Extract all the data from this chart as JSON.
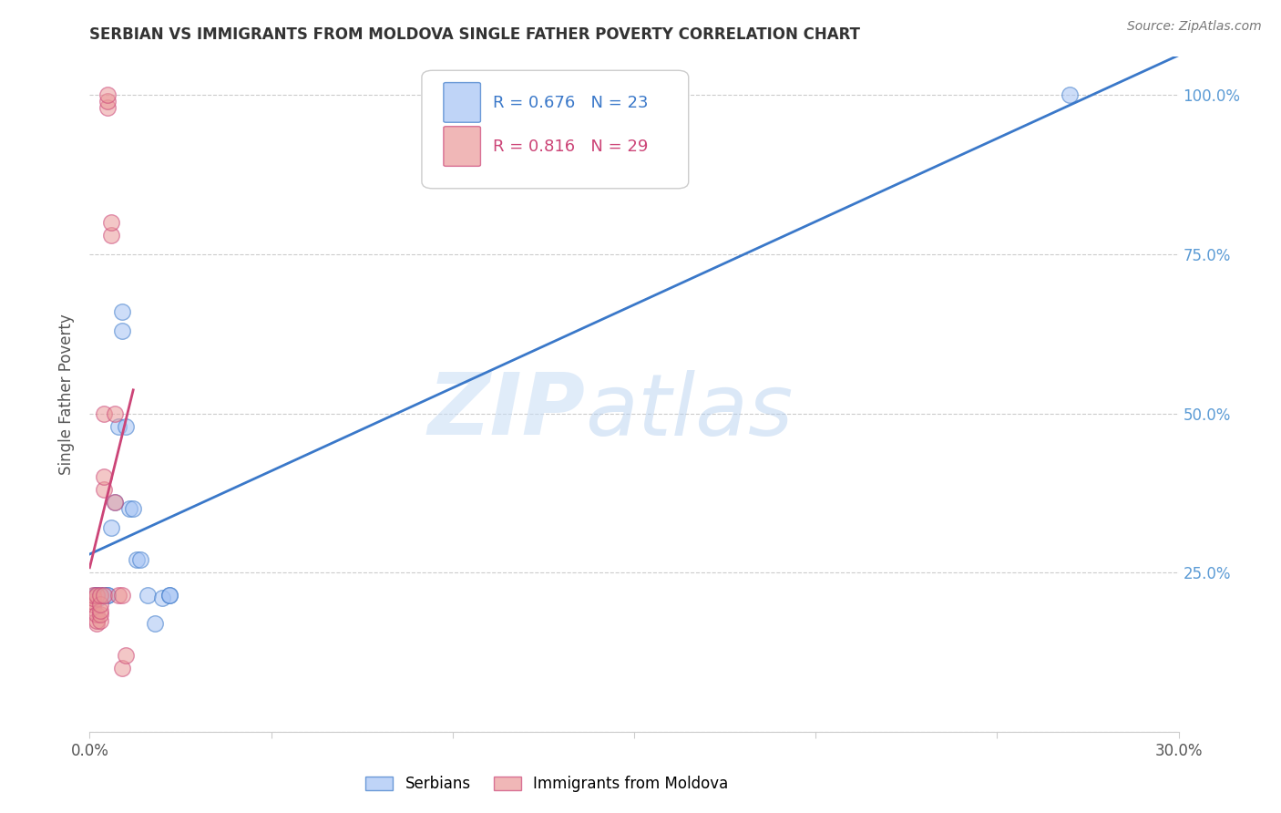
{
  "title": "SERBIAN VS IMMIGRANTS FROM MOLDOVA SINGLE FATHER POVERTY CORRELATION CHART",
  "source": "Source: ZipAtlas.com",
  "ylabel": "Single Father Poverty",
  "watermark_zip": "ZIP",
  "watermark_atlas": "atlas",
  "xlim": [
    0.0,
    0.3
  ],
  "ylim": [
    0.0,
    1.06
  ],
  "yticks": [
    0.0,
    0.25,
    0.5,
    0.75,
    1.0
  ],
  "ytick_labels": [
    "",
    "25.0%",
    "50.0%",
    "75.0%",
    "100.0%"
  ],
  "xticks": [
    0.0,
    0.05,
    0.1,
    0.15,
    0.2,
    0.25,
    0.3
  ],
  "xtick_labels": [
    "0.0%",
    "",
    "",
    "",
    "",
    "",
    "30.0%"
  ],
  "series_blue": {
    "label": "Serbians",
    "R": 0.676,
    "N": 23,
    "color": "#a4c2f4",
    "x": [
      0.0015,
      0.002,
      0.0025,
      0.003,
      0.004,
      0.005,
      0.005,
      0.006,
      0.007,
      0.008,
      0.009,
      0.009,
      0.01,
      0.011,
      0.012,
      0.013,
      0.014,
      0.016,
      0.018,
      0.02,
      0.022,
      0.022,
      0.27
    ],
    "y": [
      0.215,
      0.215,
      0.21,
      0.215,
      0.215,
      0.215,
      0.215,
      0.32,
      0.36,
      0.48,
      0.63,
      0.66,
      0.48,
      0.35,
      0.35,
      0.27,
      0.27,
      0.215,
      0.17,
      0.21,
      0.215,
      0.215,
      1.0
    ]
  },
  "series_pink": {
    "label": "Immigrants from Moldova",
    "R": 0.816,
    "N": 29,
    "color": "#ea9999",
    "x": [
      0.001,
      0.001,
      0.001,
      0.001,
      0.001,
      0.002,
      0.002,
      0.002,
      0.002,
      0.003,
      0.003,
      0.003,
      0.003,
      0.003,
      0.004,
      0.004,
      0.004,
      0.004,
      0.005,
      0.005,
      0.005,
      0.006,
      0.006,
      0.007,
      0.007,
      0.008,
      0.009,
      0.009,
      0.01
    ],
    "y": [
      0.195,
      0.2,
      0.205,
      0.21,
      0.215,
      0.17,
      0.175,
      0.185,
      0.215,
      0.175,
      0.185,
      0.19,
      0.2,
      0.215,
      0.215,
      0.38,
      0.4,
      0.5,
      0.98,
      0.99,
      1.0,
      0.78,
      0.8,
      0.5,
      0.36,
      0.215,
      0.215,
      0.1,
      0.12
    ]
  },
  "blue_line_color": "#3a78c9",
  "pink_line_color": "#cc4477",
  "grid_color": "#cccccc",
  "background_color": "#ffffff",
  "title_color": "#333333",
  "axis_label_color": "#555555",
  "right_axis_color": "#5b9bd5",
  "legend_patch_blue": "#a4c2f4",
  "legend_patch_pink": "#ea9999"
}
